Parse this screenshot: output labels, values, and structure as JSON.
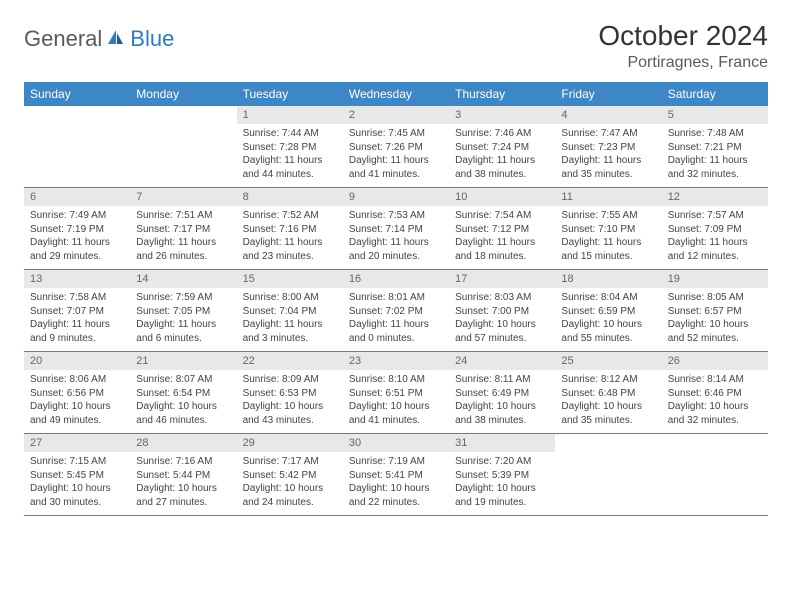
{
  "brand": {
    "part1": "General",
    "part2": "Blue"
  },
  "title": "October 2024",
  "location": "Portiragnes, France",
  "colors": {
    "header_bg": "#3d87c7",
    "header_text": "#ffffff",
    "daynum_bg": "#e8e8e8",
    "daynum_text": "#666666",
    "body_text": "#444444",
    "rule": "#3d87c7",
    "brand_gray": "#5a5a5a",
    "brand_blue": "#2f7bbf"
  },
  "weekdays": [
    "Sunday",
    "Monday",
    "Tuesday",
    "Wednesday",
    "Thursday",
    "Friday",
    "Saturday"
  ],
  "weeks": [
    [
      {
        "day": "",
        "sunrise": "",
        "sunset": "",
        "daylight": ""
      },
      {
        "day": "",
        "sunrise": "",
        "sunset": "",
        "daylight": ""
      },
      {
        "day": "1",
        "sunrise": "Sunrise: 7:44 AM",
        "sunset": "Sunset: 7:28 PM",
        "daylight": "Daylight: 11 hours and 44 minutes."
      },
      {
        "day": "2",
        "sunrise": "Sunrise: 7:45 AM",
        "sunset": "Sunset: 7:26 PM",
        "daylight": "Daylight: 11 hours and 41 minutes."
      },
      {
        "day": "3",
        "sunrise": "Sunrise: 7:46 AM",
        "sunset": "Sunset: 7:24 PM",
        "daylight": "Daylight: 11 hours and 38 minutes."
      },
      {
        "day": "4",
        "sunrise": "Sunrise: 7:47 AM",
        "sunset": "Sunset: 7:23 PM",
        "daylight": "Daylight: 11 hours and 35 minutes."
      },
      {
        "day": "5",
        "sunrise": "Sunrise: 7:48 AM",
        "sunset": "Sunset: 7:21 PM",
        "daylight": "Daylight: 11 hours and 32 minutes."
      }
    ],
    [
      {
        "day": "6",
        "sunrise": "Sunrise: 7:49 AM",
        "sunset": "Sunset: 7:19 PM",
        "daylight": "Daylight: 11 hours and 29 minutes."
      },
      {
        "day": "7",
        "sunrise": "Sunrise: 7:51 AM",
        "sunset": "Sunset: 7:17 PM",
        "daylight": "Daylight: 11 hours and 26 minutes."
      },
      {
        "day": "8",
        "sunrise": "Sunrise: 7:52 AM",
        "sunset": "Sunset: 7:16 PM",
        "daylight": "Daylight: 11 hours and 23 minutes."
      },
      {
        "day": "9",
        "sunrise": "Sunrise: 7:53 AM",
        "sunset": "Sunset: 7:14 PM",
        "daylight": "Daylight: 11 hours and 20 minutes."
      },
      {
        "day": "10",
        "sunrise": "Sunrise: 7:54 AM",
        "sunset": "Sunset: 7:12 PM",
        "daylight": "Daylight: 11 hours and 18 minutes."
      },
      {
        "day": "11",
        "sunrise": "Sunrise: 7:55 AM",
        "sunset": "Sunset: 7:10 PM",
        "daylight": "Daylight: 11 hours and 15 minutes."
      },
      {
        "day": "12",
        "sunrise": "Sunrise: 7:57 AM",
        "sunset": "Sunset: 7:09 PM",
        "daylight": "Daylight: 11 hours and 12 minutes."
      }
    ],
    [
      {
        "day": "13",
        "sunrise": "Sunrise: 7:58 AM",
        "sunset": "Sunset: 7:07 PM",
        "daylight": "Daylight: 11 hours and 9 minutes."
      },
      {
        "day": "14",
        "sunrise": "Sunrise: 7:59 AM",
        "sunset": "Sunset: 7:05 PM",
        "daylight": "Daylight: 11 hours and 6 minutes."
      },
      {
        "day": "15",
        "sunrise": "Sunrise: 8:00 AM",
        "sunset": "Sunset: 7:04 PM",
        "daylight": "Daylight: 11 hours and 3 minutes."
      },
      {
        "day": "16",
        "sunrise": "Sunrise: 8:01 AM",
        "sunset": "Sunset: 7:02 PM",
        "daylight": "Daylight: 11 hours and 0 minutes."
      },
      {
        "day": "17",
        "sunrise": "Sunrise: 8:03 AM",
        "sunset": "Sunset: 7:00 PM",
        "daylight": "Daylight: 10 hours and 57 minutes."
      },
      {
        "day": "18",
        "sunrise": "Sunrise: 8:04 AM",
        "sunset": "Sunset: 6:59 PM",
        "daylight": "Daylight: 10 hours and 55 minutes."
      },
      {
        "day": "19",
        "sunrise": "Sunrise: 8:05 AM",
        "sunset": "Sunset: 6:57 PM",
        "daylight": "Daylight: 10 hours and 52 minutes."
      }
    ],
    [
      {
        "day": "20",
        "sunrise": "Sunrise: 8:06 AM",
        "sunset": "Sunset: 6:56 PM",
        "daylight": "Daylight: 10 hours and 49 minutes."
      },
      {
        "day": "21",
        "sunrise": "Sunrise: 8:07 AM",
        "sunset": "Sunset: 6:54 PM",
        "daylight": "Daylight: 10 hours and 46 minutes."
      },
      {
        "day": "22",
        "sunrise": "Sunrise: 8:09 AM",
        "sunset": "Sunset: 6:53 PM",
        "daylight": "Daylight: 10 hours and 43 minutes."
      },
      {
        "day": "23",
        "sunrise": "Sunrise: 8:10 AM",
        "sunset": "Sunset: 6:51 PM",
        "daylight": "Daylight: 10 hours and 41 minutes."
      },
      {
        "day": "24",
        "sunrise": "Sunrise: 8:11 AM",
        "sunset": "Sunset: 6:49 PM",
        "daylight": "Daylight: 10 hours and 38 minutes."
      },
      {
        "day": "25",
        "sunrise": "Sunrise: 8:12 AM",
        "sunset": "Sunset: 6:48 PM",
        "daylight": "Daylight: 10 hours and 35 minutes."
      },
      {
        "day": "26",
        "sunrise": "Sunrise: 8:14 AM",
        "sunset": "Sunset: 6:46 PM",
        "daylight": "Daylight: 10 hours and 32 minutes."
      }
    ],
    [
      {
        "day": "27",
        "sunrise": "Sunrise: 7:15 AM",
        "sunset": "Sunset: 5:45 PM",
        "daylight": "Daylight: 10 hours and 30 minutes."
      },
      {
        "day": "28",
        "sunrise": "Sunrise: 7:16 AM",
        "sunset": "Sunset: 5:44 PM",
        "daylight": "Daylight: 10 hours and 27 minutes."
      },
      {
        "day": "29",
        "sunrise": "Sunrise: 7:17 AM",
        "sunset": "Sunset: 5:42 PM",
        "daylight": "Daylight: 10 hours and 24 minutes."
      },
      {
        "day": "30",
        "sunrise": "Sunrise: 7:19 AM",
        "sunset": "Sunset: 5:41 PM",
        "daylight": "Daylight: 10 hours and 22 minutes."
      },
      {
        "day": "31",
        "sunrise": "Sunrise: 7:20 AM",
        "sunset": "Sunset: 5:39 PM",
        "daylight": "Daylight: 10 hours and 19 minutes."
      },
      {
        "day": "",
        "sunrise": "",
        "sunset": "",
        "daylight": ""
      },
      {
        "day": "",
        "sunrise": "",
        "sunset": "",
        "daylight": ""
      }
    ]
  ]
}
